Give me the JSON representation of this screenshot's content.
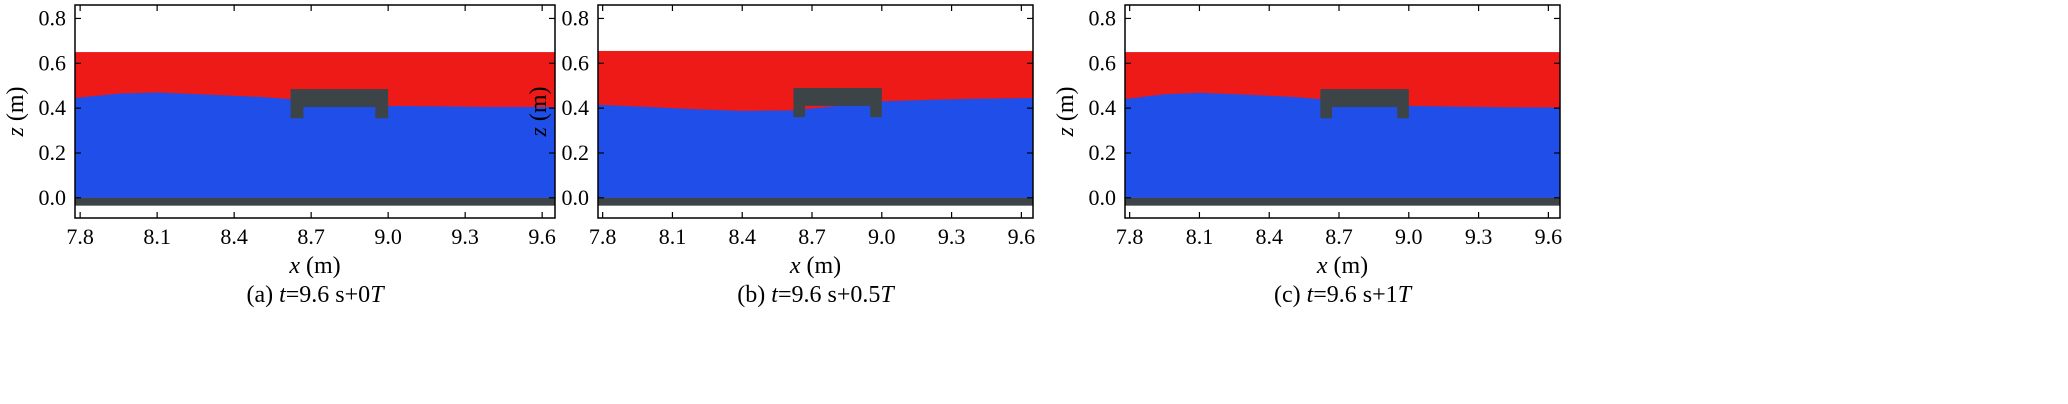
{
  "figure": {
    "colors": {
      "air": "#ee1a18",
      "water": "#1f4fe8",
      "structure": "#3d4448",
      "frame": "#000000",
      "background": "#ffffff"
    }
  },
  "chart_data": [
    {
      "type": "area",
      "caption": {
        "prefix": "(a) ",
        "var": "t",
        "mid": "=9.6 s+0",
        "italic_suffix": "T"
      },
      "xlabel": {
        "var": "x",
        "unit": " (m)"
      },
      "ylabel": {
        "var": "z",
        "unit": " (m)"
      },
      "xlim": [
        7.78,
        9.65
      ],
      "ylim": [
        -0.09,
        0.86
      ],
      "xticks": [
        7.8,
        8.1,
        8.4,
        8.7,
        9.0,
        9.3,
        9.6
      ],
      "xtick_labels": [
        "7.8",
        "8.1",
        "8.4",
        "8.7",
        "9.0",
        "9.3",
        "9.6"
      ],
      "yticks": [
        0.0,
        0.2,
        0.4,
        0.6,
        0.8
      ],
      "ytick_labels": [
        "0.0",
        "0.2",
        "0.4",
        "0.6",
        "0.8"
      ],
      "air_top": 0.65,
      "bed": {
        "top": 0.0,
        "bottom": -0.035
      },
      "floating_structure": {
        "x_left": 8.62,
        "x_right": 9.0,
        "deck_top": 0.485,
        "deck_bottom": 0.405,
        "leg_width": 0.05,
        "leg_bottom": 0.355
      },
      "free_surface": {
        "x": [
          7.78,
          7.95,
          8.1,
          8.3,
          8.5,
          8.62,
          9.0,
          9.2,
          9.4,
          9.65
        ],
        "z": [
          0.445,
          0.465,
          0.47,
          0.46,
          0.45,
          0.44,
          0.41,
          0.408,
          0.405,
          0.405
        ]
      }
    },
    {
      "type": "area",
      "caption": {
        "prefix": "(b) ",
        "var": "t",
        "mid": "=9.6 s+0.5",
        "italic_suffix": "T"
      },
      "xlabel": {
        "var": "x",
        "unit": " (m)"
      },
      "ylabel": {
        "var": "z",
        "unit": " (m)"
      },
      "xlim": [
        7.78,
        9.65
      ],
      "ylim": [
        -0.09,
        0.86
      ],
      "xticks": [
        7.8,
        8.1,
        8.4,
        8.7,
        9.0,
        9.3,
        9.6
      ],
      "xtick_labels": [
        "7.8",
        "8.1",
        "8.4",
        "8.7",
        "9.0",
        "9.3",
        "9.6"
      ],
      "yticks": [
        0.0,
        0.2,
        0.4,
        0.6,
        0.8
      ],
      "ytick_labels": [
        "0.0",
        "0.2",
        "0.4",
        "0.6",
        "0.8"
      ],
      "air_top": 0.655,
      "bed": {
        "top": 0.0,
        "bottom": -0.035
      },
      "floating_structure": {
        "x_left": 8.62,
        "x_right": 9.0,
        "deck_top": 0.49,
        "deck_bottom": 0.41,
        "leg_width": 0.05,
        "leg_bottom": 0.36
      },
      "free_surface": {
        "x": [
          7.78,
          8.0,
          8.2,
          8.4,
          8.62,
          9.0,
          9.2,
          9.4,
          9.65
        ],
        "z": [
          0.415,
          0.405,
          0.395,
          0.388,
          0.39,
          0.43,
          0.437,
          0.442,
          0.445
        ]
      }
    },
    {
      "type": "area",
      "caption": {
        "prefix": "(c) ",
        "var": "t",
        "mid": "=9.6 s+1",
        "italic_suffix": "T"
      },
      "xlabel": {
        "var": "x",
        "unit": " (m)"
      },
      "ylabel": {
        "var": "z",
        "unit": " (m)"
      },
      "xlim": [
        7.78,
        9.65
      ],
      "ylim": [
        -0.09,
        0.86
      ],
      "xticks": [
        7.8,
        8.1,
        8.4,
        8.7,
        9.0,
        9.3,
        9.6
      ],
      "xtick_labels": [
        "7.8",
        "8.1",
        "8.4",
        "8.7",
        "9.0",
        "9.3",
        "9.6"
      ],
      "yticks": [
        0.0,
        0.2,
        0.4,
        0.6,
        0.8
      ],
      "ytick_labels": [
        "0.0",
        "0.2",
        "0.4",
        "0.6",
        "0.8"
      ],
      "air_top": 0.65,
      "bed": {
        "top": 0.0,
        "bottom": -0.035
      },
      "floating_structure": {
        "x_left": 8.62,
        "x_right": 9.0,
        "deck_top": 0.485,
        "deck_bottom": 0.405,
        "leg_width": 0.05,
        "leg_bottom": 0.355
      },
      "free_surface": {
        "x": [
          7.78,
          7.95,
          8.1,
          8.3,
          8.5,
          8.62,
          9.0,
          9.2,
          9.4,
          9.65
        ],
        "z": [
          0.44,
          0.462,
          0.468,
          0.46,
          0.45,
          0.44,
          0.41,
          0.407,
          0.404,
          0.403
        ]
      }
    }
  ]
}
